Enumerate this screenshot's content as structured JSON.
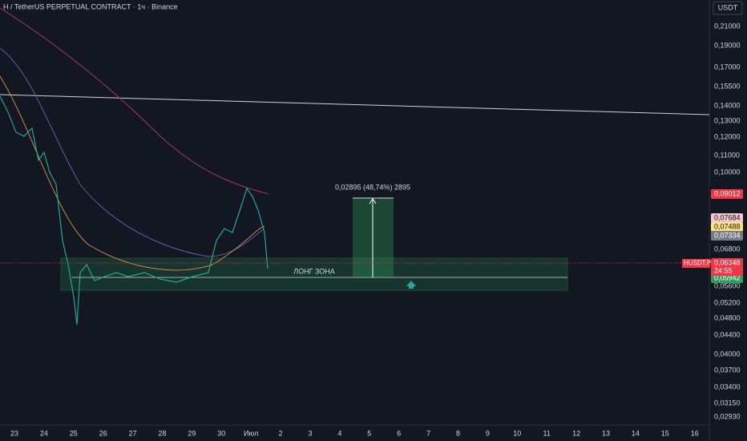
{
  "header": {
    "title": "H / TetherUS PERPETUAL CONTRACT · 1ч · Binance",
    "currency_button": "USDT"
  },
  "price_axis": {
    "labels": [
      "0,21000",
      "0,19000",
      "0,17000",
      "0,15500",
      "0,14000",
      "0,13000",
      "0,12000",
      "0,11000",
      "0,10000",
      "0,06800",
      "0,05600",
      "0,05200",
      "0,04800",
      "0,04400",
      "0,04000",
      "0,03700",
      "0,03400",
      "0,03150",
      "0,02930"
    ]
  },
  "time_axis": {
    "labels": [
      "23",
      "24",
      "25",
      "26",
      "27",
      "28",
      "29",
      "30",
      "Июл",
      "2",
      "3",
      "4",
      "5",
      "6",
      "7",
      "8",
      "9",
      "10",
      "11",
      "12",
      "13",
      "14",
      "15",
      "16"
    ]
  },
  "price_tags": [
    {
      "label": "0,09012",
      "color": "#f23645"
    },
    {
      "label": "0,07684",
      "color": "#f7c6cc"
    },
    {
      "label": "0,07488",
      "color": "#ffe082"
    },
    {
      "label": "0,07334",
      "color": "#787b86"
    },
    {
      "label": "0,05942",
      "color": "#2e9f5a"
    }
  ],
  "current_price": {
    "symbol": "HUSDT.P",
    "price": "0,06348",
    "countdown": "24:55"
  },
  "drawings": {
    "measure_label": "0,02895 (48,74%) 2895",
    "zone_label": "ЛОНГ ЗОНА"
  }
}
